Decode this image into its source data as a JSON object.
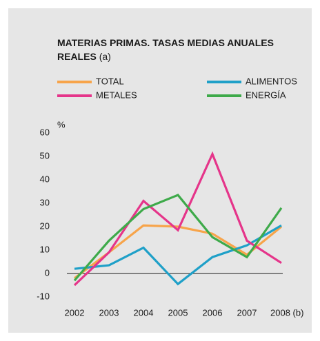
{
  "chart_data": {
    "type": "line",
    "title": "MATERIAS PRIMAS. TASAS MEDIAS ANUALES REALES",
    "subtitle": "(a)",
    "y_label": "%",
    "categories": [
      "2002",
      "2003",
      "2004",
      "2005",
      "2006",
      "2007",
      "2008 (b)"
    ],
    "series": [
      {
        "name": "TOTAL",
        "color": "#f7a44a",
        "values": [
          -2,
          9,
          20.5,
          20,
          17,
          8,
          20
        ]
      },
      {
        "name": "ALIMENTOS",
        "color": "#1fa0c8",
        "values": [
          2,
          3.5,
          11,
          -4.5,
          7,
          12,
          20.5
        ]
      },
      {
        "name": "METALES",
        "color": "#e5358a",
        "values": [
          -5,
          9,
          31,
          18.5,
          51,
          14,
          4.5
        ]
      },
      {
        "name": "ENERGÍA",
        "color": "#3eaa4a",
        "values": [
          -3,
          14,
          27.5,
          33.5,
          15.5,
          7,
          28
        ]
      }
    ],
    "ylim": [
      -10,
      60
    ],
    "yticks": [
      -10,
      0,
      10,
      20,
      30,
      40,
      50,
      60
    ],
    "grid": false
  }
}
